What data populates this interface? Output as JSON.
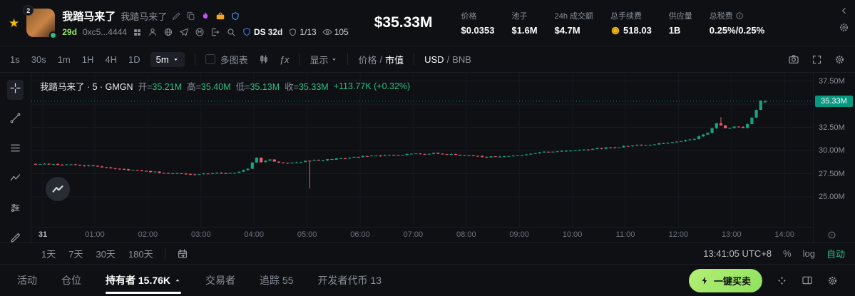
{
  "misc": {
    "slash": "/"
  },
  "header": {
    "token": {
      "symbol": "我踏马来了",
      "name": "我踏马来了",
      "avatar_badge": "2",
      "age": "29d",
      "address": "0xc5...4444",
      "ds_label": "DS",
      "ds_age": "32d",
      "audit_ratio": "1/13",
      "watch_count": "105"
    },
    "market_cap": "$35.33M",
    "stats": [
      {
        "label": "价格",
        "value": "$0.0353"
      },
      {
        "label": "池子",
        "value": "$1.6M"
      },
      {
        "label": "24h 成交额",
        "value": "$4.7M"
      },
      {
        "label": "总手续费",
        "value": "518.03"
      },
      {
        "label": "供应量",
        "value": "1B"
      },
      {
        "label": "总税费",
        "value": "0.25%/0.25%"
      }
    ]
  },
  "toolbar": {
    "timeframes": [
      "1s",
      "30s",
      "1m",
      "1H",
      "4H",
      "1D"
    ],
    "interval": "5m",
    "multichart": "多图表",
    "indicators": "ƒx",
    "display": "显示",
    "price_label": "价格",
    "mcap_label": "市值",
    "usd_label": "USD",
    "bnb_label": "BNB"
  },
  "chart": {
    "legend": {
      "title": "我踏马来了 · 5 · GMGN",
      "o_label": "开",
      "o": "35.21M",
      "h_label": "高",
      "h": "35.40M",
      "l_label": "低",
      "l": "35.13M",
      "c_label": "收",
      "c": "35.33M",
      "change": "+113.77K (+0.32%)"
    },
    "price_axis": [
      {
        "label": "37.50M",
        "value": 37.5
      },
      {
        "label": "32.50M",
        "value": 32.5
      },
      {
        "label": "30.00M",
        "value": 30.0
      },
      {
        "label": "27.50M",
        "value": 27.5
      },
      {
        "label": "25.00M",
        "value": 25.0
      }
    ],
    "current_price": {
      "label": "35.33M",
      "value": 35.33
    },
    "time_axis": [
      "31",
      "01:00",
      "02:00",
      "03:00",
      "04:00",
      "05:00",
      "06:00",
      "07:00",
      "08:00",
      "09:00",
      "10:00",
      "11:00",
      "12:00",
      "13:00",
      "14:00"
    ],
    "ranges": [
      "1天",
      "7天",
      "30天",
      "180天"
    ],
    "clock": "13:41:05 UTC+8",
    "percent": "%",
    "log": "log",
    "auto": "自动"
  },
  "chart_data": {
    "type": "candlestick",
    "interval": "5m",
    "unit": "market cap, millions USD",
    "y_range": [
      21.8,
      38.4
    ],
    "gridlines": [
      25,
      27.5,
      30,
      32.5,
      35,
      37.5
    ],
    "last_price": 35.33,
    "ohlc_last": {
      "open": 35.21,
      "high": 35.4,
      "low": 35.13,
      "close": 35.33
    },
    "anchors": [
      [
        0,
        28.55
      ],
      [
        6,
        28.5
      ],
      [
        13,
        28.35
      ],
      [
        18,
        28.1
      ],
      [
        25,
        27.8
      ],
      [
        31,
        27.55
      ],
      [
        37,
        27.45
      ],
      [
        43,
        27.55
      ],
      [
        47,
        27.7
      ],
      [
        49,
        28.05
      ],
      [
        51,
        29.25
      ],
      [
        52,
        28.7
      ],
      [
        54,
        29.0
      ],
      [
        56,
        28.65
      ],
      [
        61,
        28.8
      ],
      [
        65,
        28.95
      ],
      [
        69,
        29.1
      ],
      [
        73,
        29.3
      ],
      [
        79,
        29.45
      ],
      [
        85,
        29.6
      ],
      [
        91,
        29.7
      ],
      [
        97,
        29.55
      ],
      [
        101,
        29.35
      ],
      [
        105,
        29.3
      ],
      [
        110,
        29.5
      ],
      [
        114,
        29.7
      ],
      [
        118,
        29.9
      ],
      [
        122,
        30.0
      ],
      [
        128,
        30.2
      ],
      [
        134,
        30.45
      ],
      [
        140,
        30.65
      ],
      [
        146,
        30.9
      ],
      [
        150,
        31.3
      ],
      [
        153,
        31.9
      ],
      [
        155,
        32.9
      ],
      [
        157,
        32.4
      ],
      [
        159,
        32.55
      ],
      [
        161,
        32.5
      ],
      [
        162,
        32.9
      ],
      [
        163,
        33.5
      ],
      [
        164,
        34.35
      ],
      [
        165,
        35.33
      ]
    ],
    "special_wicks": [
      {
        "i": 62,
        "low": 25.9,
        "red": true
      },
      {
        "i": 155,
        "high": 33.6
      },
      {
        "i": 164,
        "high": 34.6
      }
    ],
    "colors": {
      "up": "#17a27f",
      "down": "#ef5c6e",
      "grid": "#171b21",
      "vgrid": "#14181d",
      "price_line": "#089981"
    }
  },
  "tabbar": {
    "tabs": [
      {
        "label": "活动"
      },
      {
        "label": "仓位"
      },
      {
        "label": "持有者 15.76K"
      },
      {
        "label": "交易者"
      },
      {
        "label": "追踪 55"
      },
      {
        "label": "开发者代币 13"
      }
    ],
    "trade_button": "一键买卖"
  },
  "colors": {
    "green": "#2ebd85",
    "lime": "#9ae76b",
    "badge": "#089981",
    "accent_button": "#9fe870"
  }
}
